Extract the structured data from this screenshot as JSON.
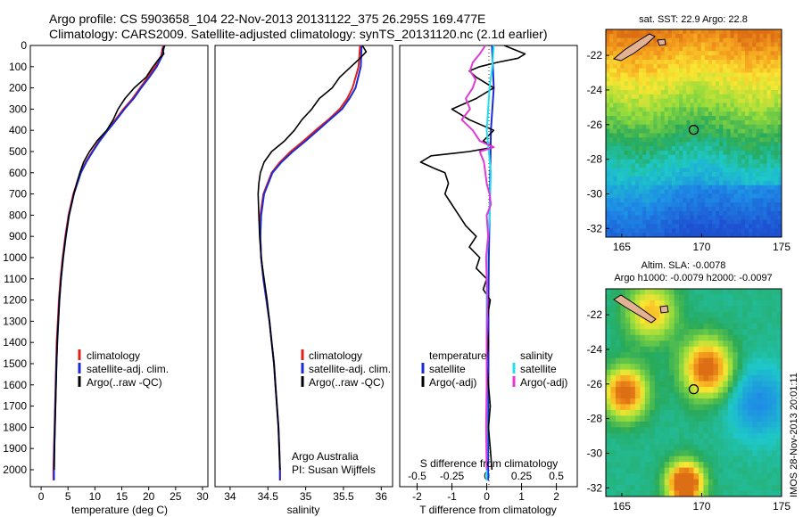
{
  "title_line1": "Argo profile: CS 5903658_104 22-Nov-2013 20131122_375 26.295S 169.477E",
  "title_line2": "Climatology: CARS2009. Satellite-adjusted climatology: synTS_20131120.nc (2.1d earlier)",
  "footer_stamp": "IMOS 28-Nov-2013 20:01:11",
  "colors": {
    "climatology": "#e0201b",
    "satellite_adj": "#1c2bd6",
    "argo": "#000000",
    "satellite_s": "#22e0f0",
    "argo_s": "#e03ad6"
  },
  "chart_data": [
    {
      "type": "line",
      "panel": "temperature",
      "xlabel": "temperature (deg C)",
      "ylabel": "depth",
      "xlim": [
        -2,
        31
      ],
      "ylim": [
        2080,
        0
      ],
      "xticks": [
        0,
        5,
        10,
        15,
        20,
        25,
        30
      ],
      "xtick_labels": [
        "0",
        "5",
        "10",
        "15",
        "20",
        "25",
        "30"
      ],
      "yticks": [
        0,
        100,
        200,
        300,
        400,
        500,
        600,
        700,
        800,
        900,
        1000,
        1100,
        1200,
        1300,
        1400,
        1500,
        1600,
        1700,
        1800,
        1900,
        2000
      ],
      "ytick_labels": [
        "0",
        "100",
        "200",
        "300",
        "400",
        "500",
        "600",
        "700",
        "800",
        "900",
        "1000",
        "1100",
        "1200",
        "1300",
        "1400",
        "1500",
        "1600",
        "1700",
        "1800",
        "1900",
        "2000"
      ],
      "legend": [
        "climatology",
        "satellite-adj. clim.",
        "Argo(..raw -QC)"
      ],
      "series": [
        {
          "name": "climatology",
          "color_key": "climatology",
          "depth": [
            0,
            50,
            100,
            150,
            200,
            250,
            300,
            350,
            400,
            450,
            500,
            550,
            600,
            700,
            800,
            900,
            1000,
            1100,
            1200,
            1300,
            1400,
            1500,
            1600,
            1700,
            1800,
            1900,
            2000,
            2050
          ],
          "values": [
            22.7,
            22.3,
            21.2,
            19.8,
            18.4,
            17.0,
            15.3,
            13.8,
            12.3,
            10.8,
            9.5,
            8.3,
            7.3,
            6.0,
            5.1,
            4.5,
            4.0,
            3.6,
            3.3,
            3.1,
            2.9,
            2.8,
            2.7,
            2.6,
            2.5,
            2.4,
            2.3,
            2.3
          ]
        },
        {
          "name": "satellite-adj. clim.",
          "color_key": "satellite_adj",
          "depth": [
            0,
            50,
            100,
            150,
            200,
            250,
            300,
            350,
            400,
            450,
            500,
            550,
            600,
            700,
            800,
            900,
            1000,
            1100,
            1200,
            1300,
            1400,
            1500,
            1600,
            1700,
            1800,
            1900,
            2000,
            2050
          ],
          "values": [
            22.9,
            22.5,
            21.5,
            20.1,
            18.6,
            17.2,
            15.5,
            14.0,
            12.4,
            10.9,
            9.6,
            8.4,
            7.4,
            6.1,
            5.2,
            4.6,
            4.1,
            3.7,
            3.4,
            3.2,
            3.0,
            2.85,
            2.75,
            2.65,
            2.55,
            2.45,
            2.4,
            2.4
          ]
        },
        {
          "name": "Argo(..raw -QC)",
          "color_key": "argo",
          "depth": [
            0,
            20,
            40,
            60,
            100,
            150,
            200,
            250,
            300,
            350,
            400,
            450,
            500,
            550,
            600,
            650,
            700,
            800,
            900,
            1000,
            1100,
            1200,
            1300,
            1400,
            1500,
            1600,
            1700,
            1800,
            1900,
            2000
          ],
          "values": [
            23.0,
            22.6,
            22.8,
            22.0,
            20.8,
            19.5,
            17.3,
            15.6,
            14.3,
            13.4,
            12.2,
            10.4,
            9.0,
            7.9,
            7.2,
            6.6,
            6.1,
            5.2,
            4.6,
            4.1,
            3.7,
            3.4,
            3.2,
            3.0,
            2.9,
            2.8,
            2.7,
            2.6,
            2.5,
            2.45
          ]
        }
      ]
    },
    {
      "type": "line",
      "panel": "salinity",
      "xlabel": "salinity",
      "xlim": [
        33.8,
        36.15
      ],
      "ylim": [
        2080,
        0
      ],
      "xticks": [
        34,
        34.5,
        35,
        35.5,
        36
      ],
      "xtick_labels": [
        "34",
        "34.5",
        "35",
        "35.5",
        "36"
      ],
      "legend": [
        "climatology",
        "satellite-adj. clim.",
        "Argo(..raw -QC)"
      ],
      "annotation_line1": "Argo Australia",
      "annotation_line2": "PI: Susan Wijffels",
      "series": [
        {
          "name": "climatology",
          "color_key": "climatology",
          "depth": [
            0,
            100,
            200,
            250,
            300,
            350,
            400,
            450,
            500,
            550,
            600,
            700,
            800,
            900,
            1000,
            1100,
            1200,
            1300,
            1400,
            1500,
            1600,
            1700,
            1800,
            1900,
            2000,
            2050
          ],
          "values": [
            35.72,
            35.7,
            35.62,
            35.55,
            35.45,
            35.3,
            35.13,
            34.97,
            34.8,
            34.66,
            34.55,
            34.44,
            34.4,
            34.4,
            34.41,
            34.44,
            34.48,
            34.52,
            34.55,
            34.58,
            34.6,
            34.62,
            34.64,
            34.65,
            34.66,
            34.66
          ]
        },
        {
          "name": "satellite-adj. clim.",
          "color_key": "satellite_adj",
          "depth": [
            0,
            100,
            200,
            250,
            300,
            350,
            400,
            450,
            500,
            550,
            600,
            700,
            800,
            900,
            1000,
            1100,
            1200,
            1300,
            1400,
            1500,
            1600,
            1700,
            1800,
            1900,
            2000,
            2050
          ],
          "values": [
            35.74,
            35.73,
            35.66,
            35.58,
            35.48,
            35.32,
            35.16,
            35.0,
            34.83,
            34.68,
            34.56,
            34.45,
            34.41,
            34.4,
            34.41,
            34.44,
            34.48,
            34.52,
            34.55,
            34.58,
            34.6,
            34.62,
            34.64,
            34.65,
            34.66,
            34.66
          ]
        },
        {
          "name": "Argo(..raw -QC)",
          "color_key": "argo",
          "depth": [
            0,
            30,
            60,
            100,
            150,
            200,
            250,
            300,
            350,
            400,
            450,
            500,
            550,
            600,
            650,
            700,
            800,
            900,
            1000,
            1100,
            1200,
            1300,
            1400,
            1500,
            1600,
            1700,
            1800,
            1900,
            2000
          ],
          "values": [
            35.75,
            35.8,
            35.72,
            35.6,
            35.45,
            35.35,
            35.18,
            35.08,
            34.95,
            34.85,
            34.72,
            34.55,
            34.45,
            34.4,
            34.38,
            34.37,
            34.38,
            34.39,
            34.41,
            34.45,
            34.49,
            34.52,
            34.55,
            34.58,
            34.6,
            34.62,
            34.64,
            34.65,
            34.66
          ]
        }
      ]
    },
    {
      "type": "line",
      "panel": "difference",
      "xlabel_bottom": "T difference from climatology",
      "xlabel_top": "S difference from climatology",
      "xlim_t": [
        -2.5,
        2.6
      ],
      "ylim": [
        2080,
        0
      ],
      "xticks_t": [
        -2,
        -1,
        0,
        1,
        2
      ],
      "xtick_labels_t": [
        "-2",
        "-1",
        "0",
        "1",
        "2"
      ],
      "xticks_s": [
        -0.5,
        -0.25,
        0,
        0.25,
        0.5
      ],
      "xtick_labels_s": [
        "-0.5",
        "-0.25",
        "0",
        "0.25",
        "0.5"
      ],
      "legend_temperature_title": "temperature",
      "legend_salinity_title": "salinity",
      "legend": [
        "satellite",
        "Argo(-adj)",
        "satellite",
        "Argo(-adj)"
      ],
      "series": [
        {
          "name": "T satellite",
          "color_key": "satellite_adj",
          "depth": [
            0,
            200,
            400,
            600,
            800,
            1000,
            1200,
            1500,
            1800,
            2050
          ],
          "values": [
            0.15,
            0.2,
            0.12,
            0.1,
            0.08,
            0.06,
            0.05,
            0.05,
            0.04,
            0.04
          ]
        },
        {
          "name": "T Argo(-adj)",
          "color_key": "argo",
          "depth": [
            0,
            20,
            40,
            60,
            80,
            100,
            120,
            150,
            200,
            250,
            300,
            350,
            400,
            450,
            480,
            500,
            520,
            550,
            580,
            600,
            650,
            700,
            750,
            800,
            850,
            900,
            950,
            1000,
            1050,
            1100,
            1150,
            1200,
            1300,
            1400,
            1500,
            1600,
            1700,
            1800,
            1900,
            2000
          ],
          "values": [
            0.5,
            0.8,
            1.1,
            0.9,
            0.3,
            -0.2,
            -0.5,
            -0.3,
            0.2,
            -0.3,
            -1.0,
            -0.5,
            0.2,
            -0.1,
            0.2,
            -0.5,
            -1.6,
            -1.9,
            -1.5,
            -1.2,
            -1.1,
            -1.2,
            -1.0,
            -0.8,
            -0.6,
            -0.3,
            -0.5,
            -0.2,
            -0.3,
            0.0,
            -0.1,
            0.1,
            0.0,
            0.05,
            0.0,
            0.05,
            0.1,
            0.05,
            0.1,
            0.15
          ]
        },
        {
          "name": "S satellite",
          "color_key": "satellite_s",
          "depth": [
            0,
            100,
            200,
            400,
            600,
            800,
            1000,
            1200,
            1500,
            1800,
            2050
          ],
          "values": [
            0.05,
            0.04,
            0.02,
            0.0,
            0.03,
            0.02,
            0.0,
            0.0,
            0.0,
            0.0,
            0.0
          ]
        },
        {
          "name": "S Argo(-adj)",
          "color_key": "argo_s",
          "depth": [
            0,
            40,
            80,
            120,
            160,
            200,
            250,
            300,
            350,
            400,
            450,
            480,
            500,
            550,
            600,
            650,
            700,
            750,
            800,
            900,
            1000,
            1100,
            1200,
            1400,
            1600,
            1800,
            2000
          ],
          "values": [
            -0.01,
            -0.05,
            -0.1,
            -0.12,
            -0.08,
            -0.1,
            -0.15,
            -0.12,
            -0.18,
            -0.1,
            -0.05,
            0.05,
            -0.05,
            -0.02,
            -0.01,
            0.0,
            0.02,
            0.03,
            0.0,
            0.01,
            -0.005,
            0.0,
            0.005,
            0.0,
            0.0,
            -0.005,
            0.0
          ]
        }
      ]
    },
    {
      "type": "heatmap",
      "panel": "sst_map",
      "title": "sat. SST: 22.9 Argo: 22.8",
      "xlim": [
        164,
        175
      ],
      "ylim": [
        -32.5,
        -20.5
      ],
      "xticks": [
        165,
        170,
        175
      ],
      "xtick_labels": [
        "165",
        "170",
        "175"
      ],
      "yticks": [
        -22,
        -24,
        -26,
        -28,
        -30,
        -32
      ],
      "ytick_labels": [
        "-22",
        "-24",
        "-26",
        "-28",
        "-30",
        "-32"
      ],
      "value_range": [
        21.5,
        25.5
      ],
      "marker_lon": 169.5,
      "marker_lat": -26.3
    },
    {
      "type": "heatmap",
      "panel": "sla_map",
      "title_line1": "Altim. SLA: -0.0078",
      "title_line2": "Argo h1000: -0.0079 h2000: -0.0097",
      "xlim": [
        164,
        175
      ],
      "ylim": [
        -32.5,
        -20.5
      ],
      "xticks": [
        165,
        170,
        175
      ],
      "xtick_labels": [
        "165",
        "170",
        "175"
      ],
      "yticks": [
        -22,
        -24,
        -26,
        -28,
        -30,
        -32
      ],
      "ytick_labels": [
        "-22",
        "-24",
        "-26",
        "-28",
        "-30",
        "-32"
      ],
      "marker_lon": 169.5,
      "marker_lat": -26.3
    }
  ]
}
